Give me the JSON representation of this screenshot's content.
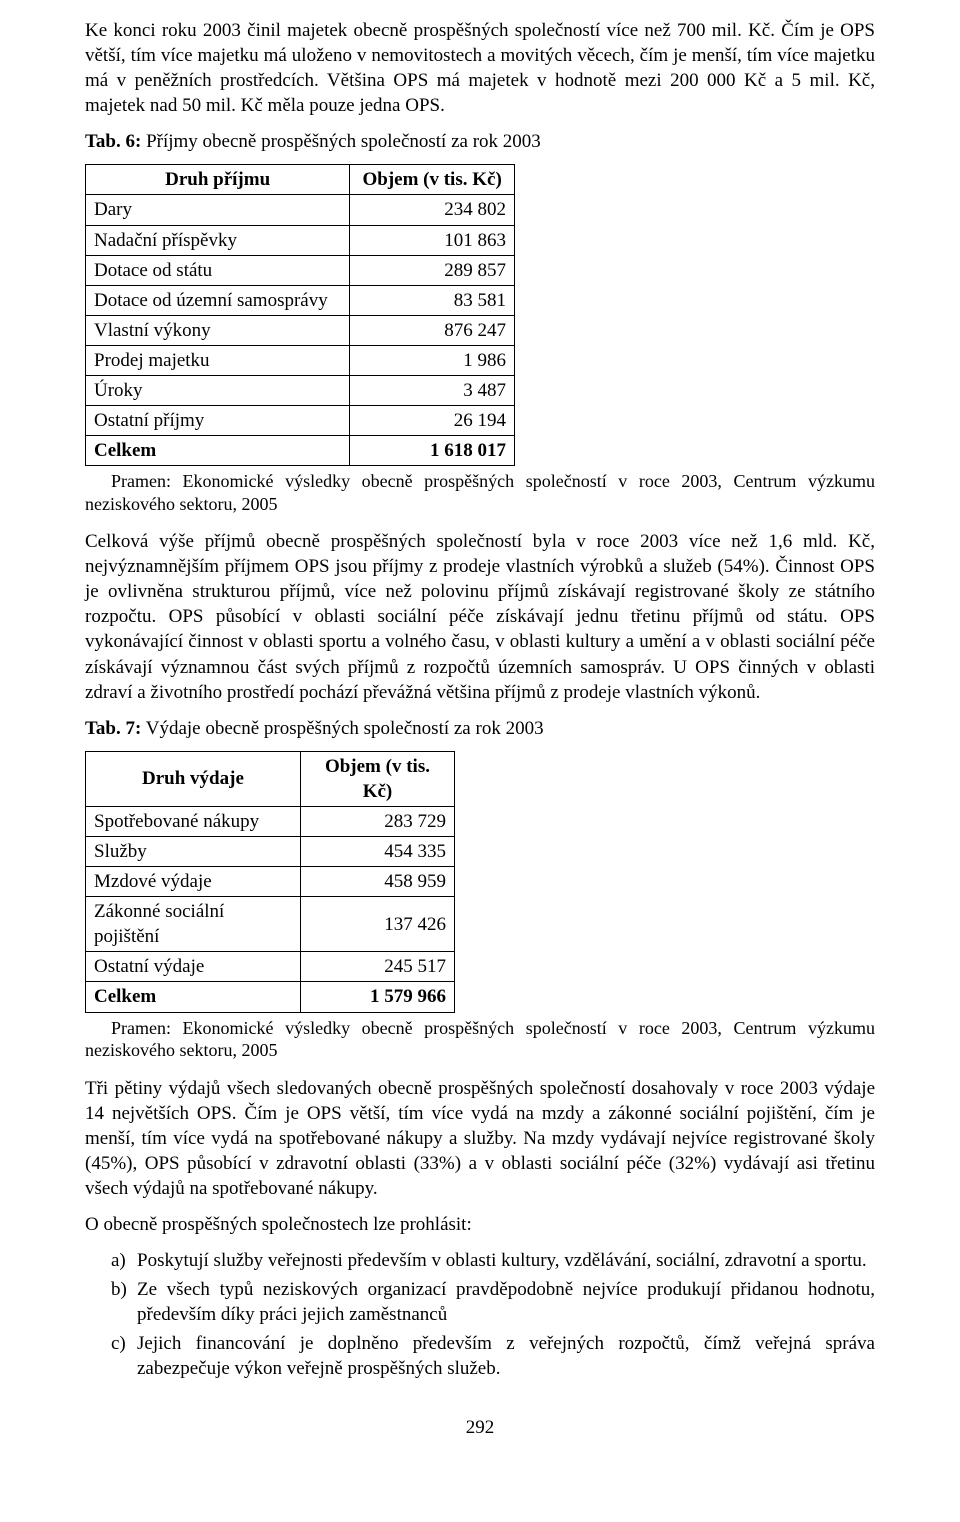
{
  "para1": "Ke konci roku 2003 činil majetek obecně prospěšných společností více než 700 mil. Kč. Čím je OPS větší, tím více majetku má uloženo v nemovitostech a movitých věcech, čím je menší, tím více majetku má v peněžních prostředcích. Většina OPS má majetek v hodnotě mezi 200 000 Kč a 5 mil. Kč, majetek nad 50 mil. Kč měla pouze jedna OPS.",
  "tab6": {
    "title_prefix": "Tab. 6:",
    "title_rest": " Příjmy obecně prospěšných společností za rok 2003",
    "head_col1": "Druh příjmu",
    "head_col2": "Objem (v tis. Kč)",
    "rows": [
      {
        "label": "Dary",
        "value": "234 802"
      },
      {
        "label": "Nadační příspěvky",
        "value": "101 863"
      },
      {
        "label": "Dotace od státu",
        "value": "289 857"
      },
      {
        "label": "Dotace od územní samosprávy",
        "value": "83 581"
      },
      {
        "label": "Vlastní výkony",
        "value": "876 247"
      },
      {
        "label": "Prodej majetku",
        "value": "1 986"
      },
      {
        "label": "Úroky",
        "value": "3 487"
      },
      {
        "label": "Ostatní příjmy",
        "value": "26 194"
      }
    ],
    "total_label": "Celkem",
    "total_value": "1 618 017",
    "source": "Pramen: Ekonomické výsledky obecně prospěšných společností v roce 2003, Centrum výzkumu neziskového sektoru, 2005"
  },
  "para2": "Celková výše příjmů obecně prospěšných společností byla v roce 2003 více než 1,6 mld. Kč, nejvýznamnějším příjmem OPS jsou příjmy z prodeje vlastních výrobků a služeb (54%). Činnost OPS je ovlivněna strukturou příjmů, více než polovinu příjmů získávají registrované školy ze státního rozpočtu. OPS působící v oblasti sociální péče získávají jednu třetinu příjmů od státu. OPS vykonávající činnost v oblasti sportu a volného času, v oblasti kultury a umění a v oblasti sociální péče získávají významnou část svých příjmů z rozpočtů územních samospráv. U OPS činných v oblasti zdraví a životního prostředí pochází převážná většina příjmů z prodeje vlastních výkonů.",
  "tab7": {
    "title_prefix": "Tab. 7:",
    "title_rest": " Výdaje obecně prospěšných společností za rok 2003",
    "head_col1": "Druh výdaje",
    "head_col2": "Objem (v tis. Kč)",
    "rows": [
      {
        "label": "Spotřebované nákupy",
        "value": "283 729"
      },
      {
        "label": "Služby",
        "value": "454 335"
      },
      {
        "label": "Mzdové výdaje",
        "value": "458 959"
      },
      {
        "label": "Zákonné sociální pojištění",
        "value": "137 426"
      },
      {
        "label": "Ostatní výdaje",
        "value": "245 517"
      }
    ],
    "total_label": "Celkem",
    "total_value": "1 579 966",
    "source": "Pramen: Ekonomické výsledky obecně prospěšných společností v roce 2003, Centrum výzkumu neziskového sektoru, 2005"
  },
  "para3": "Tři pětiny výdajů všech sledovaných obecně prospěšných společností dosahovaly v roce 2003 výdaje 14 největších OPS. Čím je OPS větší, tím více vydá na mzdy a zákonné sociální pojištění, čím je menší, tím více vydá na spotřebované nákupy a služby. Na mzdy vydávají nejvíce registrované školy (45%), OPS působící v zdravotní oblasti (33%) a v oblasti sociální péče (32%) vydávají asi třetinu všech výdajů na spotřebované nákupy.",
  "para4": "O obecně prospěšných společnostech lze prohlásit:",
  "list": {
    "a": {
      "marker": "a)",
      "text": "Poskytují služby veřejnosti především v oblasti kultury, vzdělávání, sociální, zdravotní a sportu."
    },
    "b": {
      "marker": "b)",
      "text": "Ze všech typů neziskových organizací pravděpodobně nejvíce produkují přidanou hodnotu, především díky práci jejich zaměstnanců"
    },
    "c": {
      "marker": "c)",
      "text": "Jejich financování je doplněno především z veřejných rozpočtů, čímž veřejná správa zabezpečuje výkon veřejně prospěšných služeb."
    }
  },
  "page_number": "292"
}
